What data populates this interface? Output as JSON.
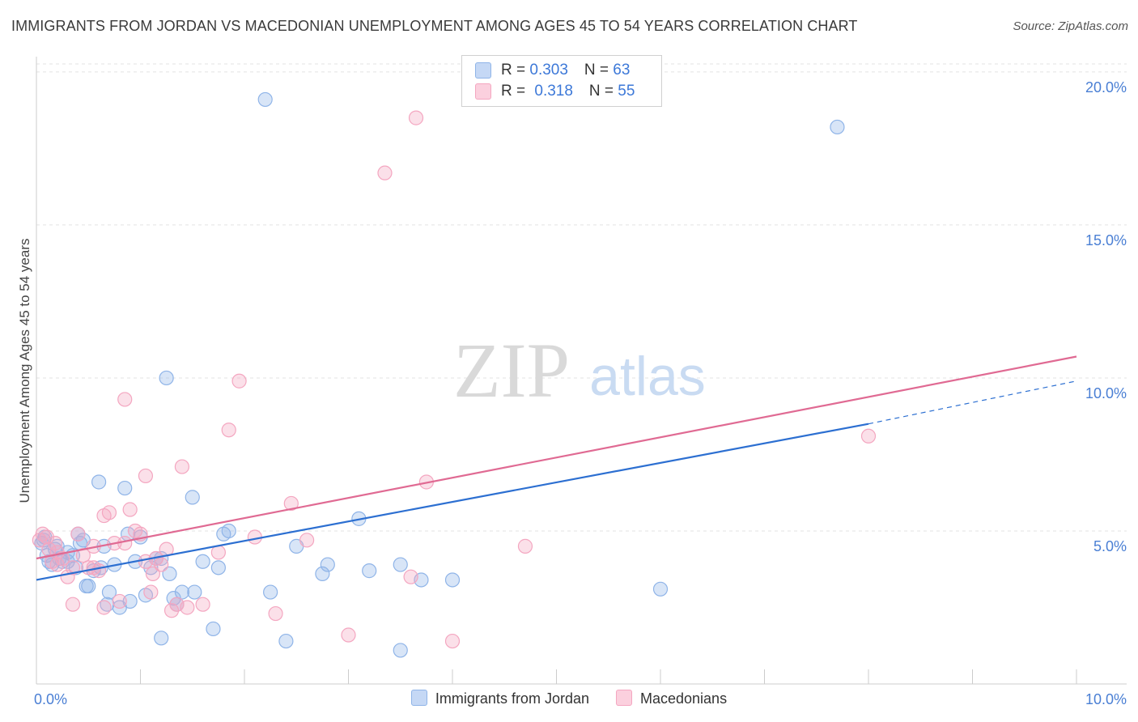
{
  "title": "IMMIGRANTS FROM JORDAN VS MACEDONIAN UNEMPLOYMENT AMONG AGES 45 TO 54 YEARS CORRELATION CHART",
  "source": "Source: ZipAtlas.com",
  "watermark": {
    "zip": "ZIP",
    "atlas": "atlas"
  },
  "legend": {
    "series1": {
      "r_label": "R = ",
      "r_value": "0.303",
      "n_label": "N = ",
      "n_value": "63"
    },
    "series2": {
      "r_label": "R = ",
      "r_value": "0.318",
      "n_label": "N = ",
      "n_value": "55"
    }
  },
  "chart_data": {
    "type": "scatter",
    "title": "IMMIGRANTS FROM JORDAN VS MACEDONIAN UNEMPLOYMENT AMONG AGES 45 TO 54 YEARS CORRELATION CHART",
    "xlabel": "",
    "ylabel": "Unemployment Among Ages 45 to 54 years",
    "xlim": [
      0,
      10
    ],
    "ylim": [
      0,
      20.5
    ],
    "x_tick_labels": [
      {
        "value": 0,
        "label": "0.0%"
      },
      {
        "value": 10,
        "label": "10.0%"
      }
    ],
    "y_tick_labels": [
      {
        "value": 5,
        "label": "5.0%"
      },
      {
        "value": 10,
        "label": "10.0%"
      },
      {
        "value": 15,
        "label": "15.0%"
      },
      {
        "value": 20,
        "label": "20.0%"
      }
    ],
    "grid": true,
    "legend_position": "top-center",
    "series": [
      {
        "name": "Immigrants from Jordan",
        "color": "#8fb4e8",
        "line_color": "#2c6fd1",
        "trend": {
          "x0": 0,
          "y0": 3.4,
          "x1": 8.0,
          "y1": 8.5,
          "dash_x1": 10.0,
          "dash_y1": 9.9
        },
        "points": [
          [
            0.05,
            4.6
          ],
          [
            0.08,
            4.8
          ],
          [
            0.1,
            4.2
          ],
          [
            0.12,
            4.0
          ],
          [
            0.15,
            3.9
          ],
          [
            0.18,
            4.4
          ],
          [
            0.2,
            4.5
          ],
          [
            0.22,
            4.1
          ],
          [
            0.25,
            4.0
          ],
          [
            0.3,
            4.0
          ],
          [
            0.35,
            4.2
          ],
          [
            0.38,
            3.8
          ],
          [
            0.4,
            4.9
          ],
          [
            0.42,
            4.6
          ],
          [
            0.45,
            4.7
          ],
          [
            0.48,
            3.2
          ],
          [
            0.5,
            3.2
          ],
          [
            0.55,
            3.7
          ],
          [
            0.6,
            6.6
          ],
          [
            0.62,
            3.8
          ],
          [
            0.65,
            4.5
          ],
          [
            0.68,
            2.6
          ],
          [
            0.7,
            3.0
          ],
          [
            0.75,
            3.9
          ],
          [
            0.8,
            2.5
          ],
          [
            0.85,
            6.4
          ],
          [
            0.88,
            4.9
          ],
          [
            0.9,
            2.7
          ],
          [
            0.95,
            4.0
          ],
          [
            1.0,
            4.8
          ],
          [
            1.05,
            2.9
          ],
          [
            1.1,
            3.8
          ],
          [
            1.15,
            4.1
          ],
          [
            1.2,
            1.5
          ],
          [
            1.2,
            4.1
          ],
          [
            1.25,
            10.0
          ],
          [
            1.28,
            3.6
          ],
          [
            1.32,
            2.8
          ],
          [
            1.35,
            2.6
          ],
          [
            1.4,
            3.0
          ],
          [
            1.5,
            6.1
          ],
          [
            1.52,
            3.0
          ],
          [
            1.6,
            4.0
          ],
          [
            1.7,
            1.8
          ],
          [
            1.75,
            3.8
          ],
          [
            1.8,
            4.9
          ],
          [
            1.85,
            5.0
          ],
          [
            2.2,
            19.1
          ],
          [
            2.25,
            3.0
          ],
          [
            2.4,
            1.4
          ],
          [
            2.5,
            4.5
          ],
          [
            2.75,
            3.6
          ],
          [
            2.8,
            3.9
          ],
          [
            3.1,
            5.4
          ],
          [
            3.2,
            3.7
          ],
          [
            3.5,
            3.9
          ],
          [
            3.5,
            1.1
          ],
          [
            3.7,
            3.4
          ],
          [
            4.0,
            3.4
          ],
          [
            6.0,
            3.1
          ],
          [
            7.7,
            18.2
          ],
          [
            0.07,
            4.7
          ],
          [
            0.3,
            4.3
          ]
        ]
      },
      {
        "name": "Macedonians",
        "color": "#f4a6c0",
        "line_color": "#e06a93",
        "trend": {
          "x0": 0,
          "y0": 4.1,
          "x1": 10.0,
          "y1": 10.7
        },
        "points": [
          [
            0.03,
            4.7
          ],
          [
            0.06,
            4.9
          ],
          [
            0.1,
            4.8
          ],
          [
            0.12,
            4.4
          ],
          [
            0.15,
            4.0
          ],
          [
            0.18,
            4.6
          ],
          [
            0.2,
            4.3
          ],
          [
            0.25,
            4.1
          ],
          [
            0.3,
            3.5
          ],
          [
            0.35,
            3.8
          ],
          [
            0.4,
            4.9
          ],
          [
            0.45,
            4.2
          ],
          [
            0.5,
            3.8
          ],
          [
            0.55,
            4.5
          ],
          [
            0.6,
            3.7
          ],
          [
            0.65,
            5.5
          ],
          [
            0.7,
            5.6
          ],
          [
            0.75,
            4.6
          ],
          [
            0.8,
            2.7
          ],
          [
            0.85,
            9.3
          ],
          [
            0.9,
            5.7
          ],
          [
            0.95,
            5.0
          ],
          [
            1.0,
            4.9
          ],
          [
            1.05,
            6.8
          ],
          [
            1.1,
            3.0
          ],
          [
            1.12,
            3.6
          ],
          [
            1.15,
            4.1
          ],
          [
            1.2,
            3.9
          ],
          [
            1.25,
            4.4
          ],
          [
            1.3,
            2.4
          ],
          [
            1.35,
            2.6
          ],
          [
            1.4,
            7.1
          ],
          [
            1.45,
            2.5
          ],
          [
            1.6,
            2.6
          ],
          [
            1.75,
            4.3
          ],
          [
            1.85,
            8.3
          ],
          [
            1.95,
            9.9
          ],
          [
            2.1,
            4.8
          ],
          [
            2.3,
            2.3
          ],
          [
            2.45,
            5.9
          ],
          [
            2.6,
            4.7
          ],
          [
            3.0,
            1.6
          ],
          [
            3.35,
            16.7
          ],
          [
            3.6,
            3.5
          ],
          [
            3.65,
            18.5
          ],
          [
            3.75,
            6.6
          ],
          [
            4.0,
            1.4
          ],
          [
            4.7,
            4.5
          ],
          [
            8.0,
            8.1
          ],
          [
            0.55,
            3.8
          ],
          [
            0.65,
            2.5
          ],
          [
            0.35,
            2.6
          ],
          [
            1.05,
            4.0
          ],
          [
            0.85,
            4.6
          ],
          [
            0.2,
            3.9
          ]
        ]
      }
    ]
  },
  "legend_bottom": [
    "Immigrants from Jordan",
    "Macedonians"
  ]
}
